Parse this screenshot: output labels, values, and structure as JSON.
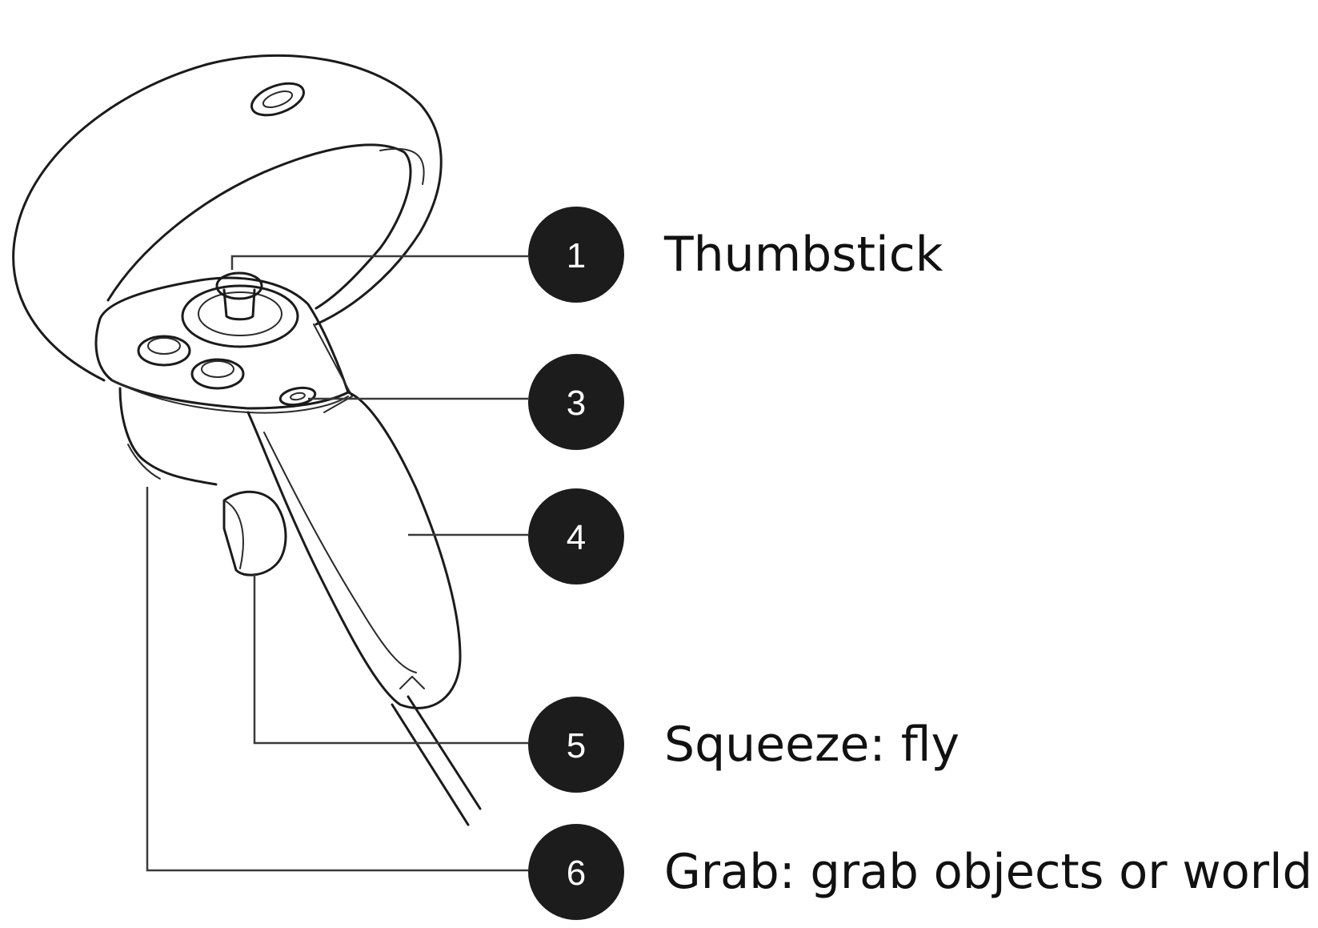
{
  "callouts": [
    {
      "number": "1",
      "label": "Thumbstick"
    },
    {
      "number": "3",
      "label": ""
    },
    {
      "number": "4",
      "label": ""
    },
    {
      "number": "5",
      "label": "Squeeze: fly"
    },
    {
      "number": "6",
      "label": "Grab: grab objects or world"
    }
  ],
  "colors": {
    "badge_fill": "#1c1c1c",
    "badge_text": "#ffffff",
    "line": "#1b1b1b",
    "background": "#ffffff"
  }
}
